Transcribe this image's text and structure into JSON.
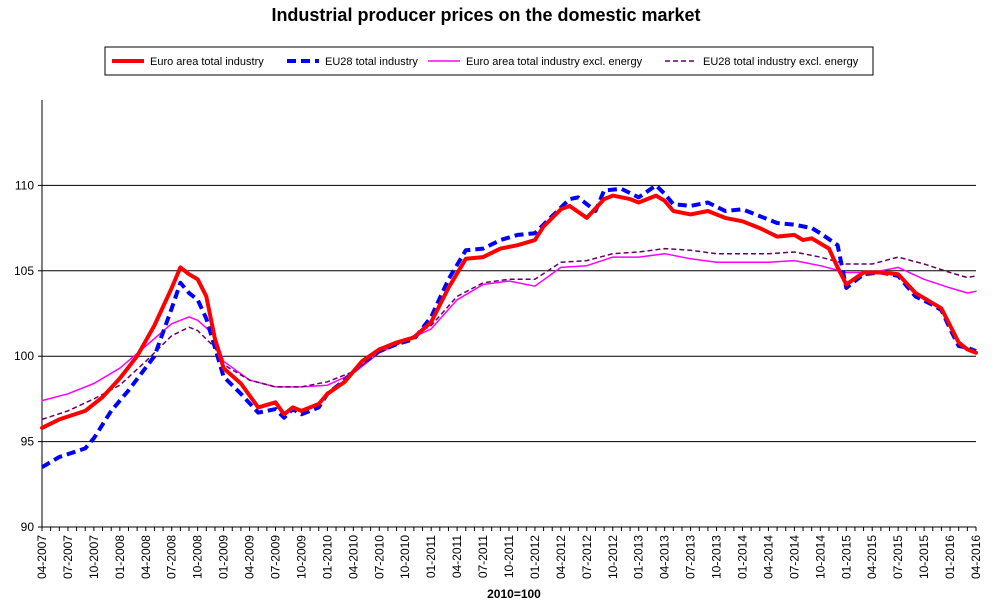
{
  "chart_data": {
    "type": "line",
    "title": "Industrial producer prices on the domestic market",
    "xlabel": "2010=100",
    "ylabel": "",
    "ylim": [
      90,
      115
    ],
    "yticks": [
      90,
      95,
      100,
      105,
      110
    ],
    "grid": true,
    "legend_position": "top",
    "x_start": "2007-04",
    "x_end": "2016-04",
    "x_tick_labels": [
      "04-2007",
      "07-2007",
      "10-2007",
      "01-2008",
      "04-2008",
      "07-2008",
      "10-2008",
      "01-2009",
      "04-2009",
      "07-2009",
      "10-2009",
      "01-2010",
      "04-2010",
      "07-2010",
      "10-2010",
      "01-2011",
      "04-2011",
      "07-2011",
      "10-2011",
      "01-2012",
      "04-2012",
      "07-2012",
      "10-2012",
      "01-2013",
      "04-2013",
      "07-2013",
      "10-2013",
      "01-2014",
      "04-2014",
      "07-2014",
      "10-2014",
      "01-2015",
      "04-2015",
      "07-2015",
      "10-2015",
      "01-2016",
      "04-2016"
    ],
    "series": [
      {
        "name": "Euro area total industry",
        "color": "#ff0000",
        "style": "solid-thick",
        "anchors": [
          [
            "2007-04",
            95.8
          ],
          [
            "2007-06",
            96.3
          ],
          [
            "2007-09",
            96.8
          ],
          [
            "2007-11",
            97.6
          ],
          [
            "2008-01",
            98.7
          ],
          [
            "2008-03",
            100.0
          ],
          [
            "2008-05",
            101.8
          ],
          [
            "2008-07",
            104.0
          ],
          [
            "2008-08",
            105.2
          ],
          [
            "2008-09",
            104.8
          ],
          [
            "2008-10",
            104.5
          ],
          [
            "2008-11",
            103.5
          ],
          [
            "2008-12",
            101.0
          ],
          [
            "2009-01",
            99.3
          ],
          [
            "2009-03",
            98.4
          ],
          [
            "2009-05",
            97.0
          ],
          [
            "2009-07",
            97.3
          ],
          [
            "2009-08",
            96.6
          ],
          [
            "2009-09",
            97.0
          ],
          [
            "2009-10",
            96.8
          ],
          [
            "2009-12",
            97.2
          ],
          [
            "2010-01",
            97.8
          ],
          [
            "2010-03",
            98.5
          ],
          [
            "2010-05",
            99.7
          ],
          [
            "2010-07",
            100.4
          ],
          [
            "2010-09",
            100.8
          ],
          [
            "2010-11",
            101.1
          ],
          [
            "2011-01",
            102.0
          ],
          [
            "2011-03",
            104.0
          ],
          [
            "2011-05",
            105.7
          ],
          [
            "2011-07",
            105.8
          ],
          [
            "2011-09",
            106.3
          ],
          [
            "2011-11",
            106.5
          ],
          [
            "2012-01",
            106.8
          ],
          [
            "2012-02",
            107.6
          ],
          [
            "2012-04",
            108.6
          ],
          [
            "2012-05",
            108.8
          ],
          [
            "2012-07",
            108.1
          ],
          [
            "2012-09",
            109.2
          ],
          [
            "2012-10",
            109.4
          ],
          [
            "2012-12",
            109.2
          ],
          [
            "2013-01",
            109.0
          ],
          [
            "2013-03",
            109.4
          ],
          [
            "2013-04",
            109.1
          ],
          [
            "2013-05",
            108.5
          ],
          [
            "2013-07",
            108.3
          ],
          [
            "2013-09",
            108.5
          ],
          [
            "2013-11",
            108.1
          ],
          [
            "2014-01",
            107.9
          ],
          [
            "2014-03",
            107.5
          ],
          [
            "2014-05",
            107.0
          ],
          [
            "2014-07",
            107.1
          ],
          [
            "2014-08",
            106.8
          ],
          [
            "2014-09",
            106.9
          ],
          [
            "2014-11",
            106.3
          ],
          [
            "2014-12",
            105.2
          ],
          [
            "2015-01",
            104.2
          ],
          [
            "2015-03",
            104.9
          ],
          [
            "2015-05",
            104.9
          ],
          [
            "2015-07",
            104.8
          ],
          [
            "2015-09",
            103.7
          ],
          [
            "2015-11",
            103.1
          ],
          [
            "2015-12",
            102.8
          ],
          [
            "2016-01",
            101.8
          ],
          [
            "2016-02",
            100.8
          ],
          [
            "2016-03",
            100.4
          ],
          [
            "2016-04",
            100.2
          ]
        ]
      },
      {
        "name": "EU28 total industry",
        "color": "#0000ff",
        "style": "dashed-thick",
        "anchors": [
          [
            "2007-04",
            93.5
          ],
          [
            "2007-06",
            94.1
          ],
          [
            "2007-09",
            94.6
          ],
          [
            "2007-10",
            95.2
          ],
          [
            "2007-12",
            96.8
          ],
          [
            "2008-02",
            98.0
          ],
          [
            "2008-05",
            100.0
          ],
          [
            "2008-07",
            102.8
          ],
          [
            "2008-08",
            104.3
          ],
          [
            "2008-09",
            103.7
          ],
          [
            "2008-10",
            103.3
          ],
          [
            "2008-11",
            102.2
          ],
          [
            "2008-12",
            100.5
          ],
          [
            "2009-01",
            98.8
          ],
          [
            "2009-03",
            97.8
          ],
          [
            "2009-05",
            96.7
          ],
          [
            "2009-06",
            96.8
          ],
          [
            "2009-07",
            96.9
          ],
          [
            "2009-08",
            96.4
          ],
          [
            "2009-09",
            96.9
          ],
          [
            "2009-10",
            96.6
          ],
          [
            "2009-12",
            97.0
          ],
          [
            "2010-01",
            97.8
          ],
          [
            "2010-03",
            98.6
          ],
          [
            "2010-05",
            99.6
          ],
          [
            "2010-07",
            100.3
          ],
          [
            "2010-09",
            100.7
          ],
          [
            "2010-11",
            101.0
          ],
          [
            "2011-01",
            102.3
          ],
          [
            "2011-03",
            104.5
          ],
          [
            "2011-05",
            106.2
          ],
          [
            "2011-07",
            106.3
          ],
          [
            "2011-09",
            106.8
          ],
          [
            "2011-11",
            107.1
          ],
          [
            "2012-01",
            107.2
          ],
          [
            "2012-03",
            108.2
          ],
          [
            "2012-05",
            109.2
          ],
          [
            "2012-06",
            109.3
          ],
          [
            "2012-08",
            108.5
          ],
          [
            "2012-09",
            109.7
          ],
          [
            "2012-11",
            109.8
          ],
          [
            "2013-01",
            109.3
          ],
          [
            "2013-03",
            110.0
          ],
          [
            "2013-04",
            109.5
          ],
          [
            "2013-05",
            108.9
          ],
          [
            "2013-07",
            108.8
          ],
          [
            "2013-09",
            109.0
          ],
          [
            "2013-11",
            108.5
          ],
          [
            "2014-01",
            108.6
          ],
          [
            "2014-03",
            108.2
          ],
          [
            "2014-05",
            107.8
          ],
          [
            "2014-07",
            107.7
          ],
          [
            "2014-09",
            107.5
          ],
          [
            "2014-10",
            107.2
          ],
          [
            "2014-12",
            106.5
          ],
          [
            "2015-01",
            104.0
          ],
          [
            "2015-03",
            104.8
          ],
          [
            "2015-05",
            104.9
          ],
          [
            "2015-07",
            104.7
          ],
          [
            "2015-09",
            103.5
          ],
          [
            "2015-11",
            103.0
          ],
          [
            "2015-12",
            102.7
          ],
          [
            "2016-01",
            101.6
          ],
          [
            "2016-02",
            100.6
          ],
          [
            "2016-03",
            100.5
          ],
          [
            "2016-04",
            100.3
          ]
        ]
      },
      {
        "name": "Euro area total industry excl. energy",
        "color": "#ff00ff",
        "style": "solid-thin",
        "anchors": [
          [
            "2007-04",
            97.4
          ],
          [
            "2007-07",
            97.8
          ],
          [
            "2007-10",
            98.4
          ],
          [
            "2008-01",
            99.3
          ],
          [
            "2008-04",
            100.6
          ],
          [
            "2008-07",
            101.9
          ],
          [
            "2008-09",
            102.3
          ],
          [
            "2008-10",
            102.1
          ],
          [
            "2008-12",
            101.2
          ],
          [
            "2009-01",
            99.7
          ],
          [
            "2009-04",
            98.6
          ],
          [
            "2009-07",
            98.2
          ],
          [
            "2009-10",
            98.2
          ],
          [
            "2010-01",
            98.3
          ],
          [
            "2010-04",
            99.0
          ],
          [
            "2010-07",
            100.2
          ],
          [
            "2010-10",
            100.9
          ],
          [
            "2011-01",
            101.6
          ],
          [
            "2011-04",
            103.3
          ],
          [
            "2011-07",
            104.2
          ],
          [
            "2011-10",
            104.4
          ],
          [
            "2012-01",
            104.1
          ],
          [
            "2012-04",
            105.2
          ],
          [
            "2012-07",
            105.3
          ],
          [
            "2012-10",
            105.8
          ],
          [
            "2013-01",
            105.8
          ],
          [
            "2013-04",
            106.0
          ],
          [
            "2013-07",
            105.7
          ],
          [
            "2013-10",
            105.5
          ],
          [
            "2014-01",
            105.5
          ],
          [
            "2014-04",
            105.5
          ],
          [
            "2014-07",
            105.6
          ],
          [
            "2014-10",
            105.3
          ],
          [
            "2015-01",
            104.9
          ],
          [
            "2015-04",
            104.9
          ],
          [
            "2015-07",
            105.2
          ],
          [
            "2015-10",
            104.5
          ],
          [
            "2016-01",
            104.0
          ],
          [
            "2016-03",
            103.7
          ],
          [
            "2016-04",
            103.8
          ]
        ]
      },
      {
        "name": "EU28 total industry excl. energy",
        "color": "#660066",
        "style": "dashed-thin",
        "anchors": [
          [
            "2007-04",
            96.3
          ],
          [
            "2007-07",
            96.8
          ],
          [
            "2007-10",
            97.5
          ],
          [
            "2008-01",
            98.3
          ],
          [
            "2008-04",
            99.7
          ],
          [
            "2008-07",
            101.2
          ],
          [
            "2008-09",
            101.7
          ],
          [
            "2008-10",
            101.5
          ],
          [
            "2008-12",
            100.5
          ],
          [
            "2009-01",
            99.5
          ],
          [
            "2009-04",
            98.6
          ],
          [
            "2009-07",
            98.2
          ],
          [
            "2009-10",
            98.2
          ],
          [
            "2010-01",
            98.5
          ],
          [
            "2010-04",
            99.1
          ],
          [
            "2010-07",
            100.2
          ],
          [
            "2010-10",
            100.9
          ],
          [
            "2011-01",
            101.8
          ],
          [
            "2011-04",
            103.5
          ],
          [
            "2011-07",
            104.3
          ],
          [
            "2011-10",
            104.5
          ],
          [
            "2012-01",
            104.5
          ],
          [
            "2012-04",
            105.5
          ],
          [
            "2012-07",
            105.6
          ],
          [
            "2012-10",
            106.0
          ],
          [
            "2013-01",
            106.1
          ],
          [
            "2013-04",
            106.3
          ],
          [
            "2013-07",
            106.2
          ],
          [
            "2013-10",
            106.0
          ],
          [
            "2014-01",
            106.0
          ],
          [
            "2014-04",
            106.0
          ],
          [
            "2014-07",
            106.1
          ],
          [
            "2014-10",
            105.8
          ],
          [
            "2015-01",
            105.4
          ],
          [
            "2015-04",
            105.4
          ],
          [
            "2015-07",
            105.8
          ],
          [
            "2015-10",
            105.4
          ],
          [
            "2016-01",
            104.9
          ],
          [
            "2016-03",
            104.6
          ],
          [
            "2016-04",
            104.7
          ]
        ]
      }
    ]
  }
}
